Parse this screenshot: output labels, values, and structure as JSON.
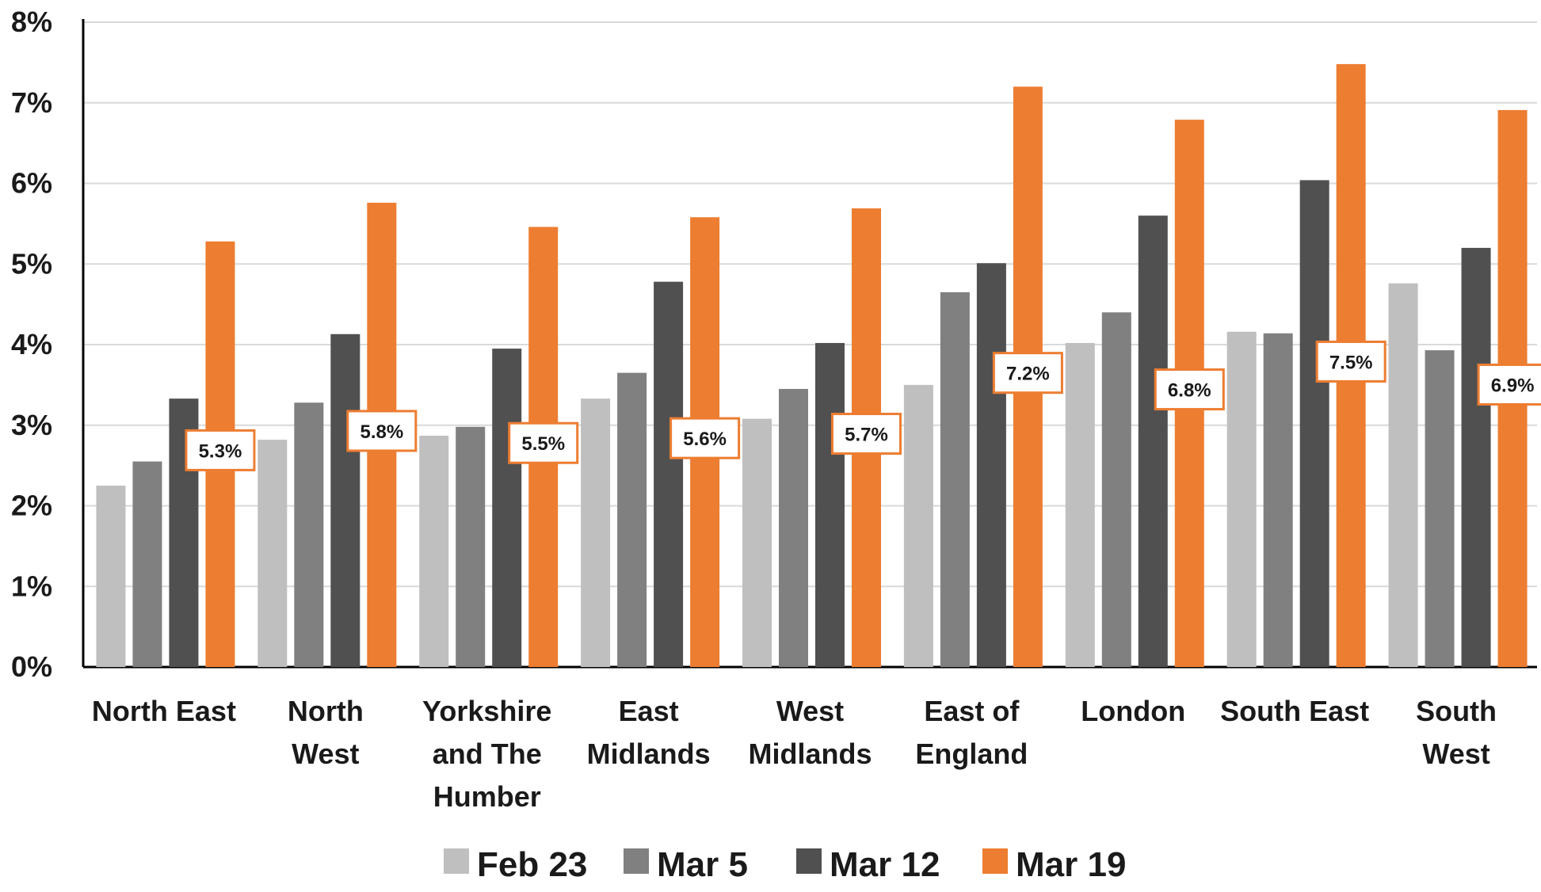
{
  "chart_data": {
    "type": "bar",
    "categories": [
      [
        "North East"
      ],
      [
        "North",
        "West"
      ],
      [
        "Yorkshire",
        "and The",
        "Humber"
      ],
      [
        "East",
        "Midlands"
      ],
      [
        "West",
        "Midlands"
      ],
      [
        "East of",
        "England"
      ],
      [
        "London"
      ],
      [
        "South East"
      ],
      [
        "South",
        "West"
      ]
    ],
    "series": [
      {
        "name": "Feb 23",
        "color": "#bfbfbf",
        "values": [
          2.25,
          2.82,
          2.87,
          3.33,
          3.08,
          3.5,
          4.02,
          4.16,
          4.76
        ]
      },
      {
        "name": "Mar 5",
        "color": "#808080",
        "values": [
          2.55,
          3.28,
          2.98,
          3.65,
          3.45,
          4.65,
          4.4,
          4.14,
          3.93
        ]
      },
      {
        "name": "Mar 12",
        "color": "#505050",
        "values": [
          3.33,
          4.13,
          3.95,
          4.78,
          4.02,
          5.01,
          5.6,
          6.04,
          5.2
        ]
      },
      {
        "name": "Mar 19",
        "color": "#ed7d31",
        "values": [
          5.28,
          5.76,
          5.46,
          5.58,
          5.69,
          7.2,
          6.79,
          7.48,
          6.91
        ]
      }
    ],
    "data_labels": [
      "5.3%",
      "5.8%",
      "5.5%",
      "5.6%",
      "5.7%",
      "7.2%",
      "6.8%",
      "7.5%",
      "6.9%"
    ],
    "y_ticks": [
      "0%",
      "1%",
      "2%",
      "3%",
      "4%",
      "5%",
      "6%",
      "7%",
      "8%"
    ],
    "ylim": [
      0,
      8
    ],
    "grid": true,
    "legend_position": "bottom"
  }
}
